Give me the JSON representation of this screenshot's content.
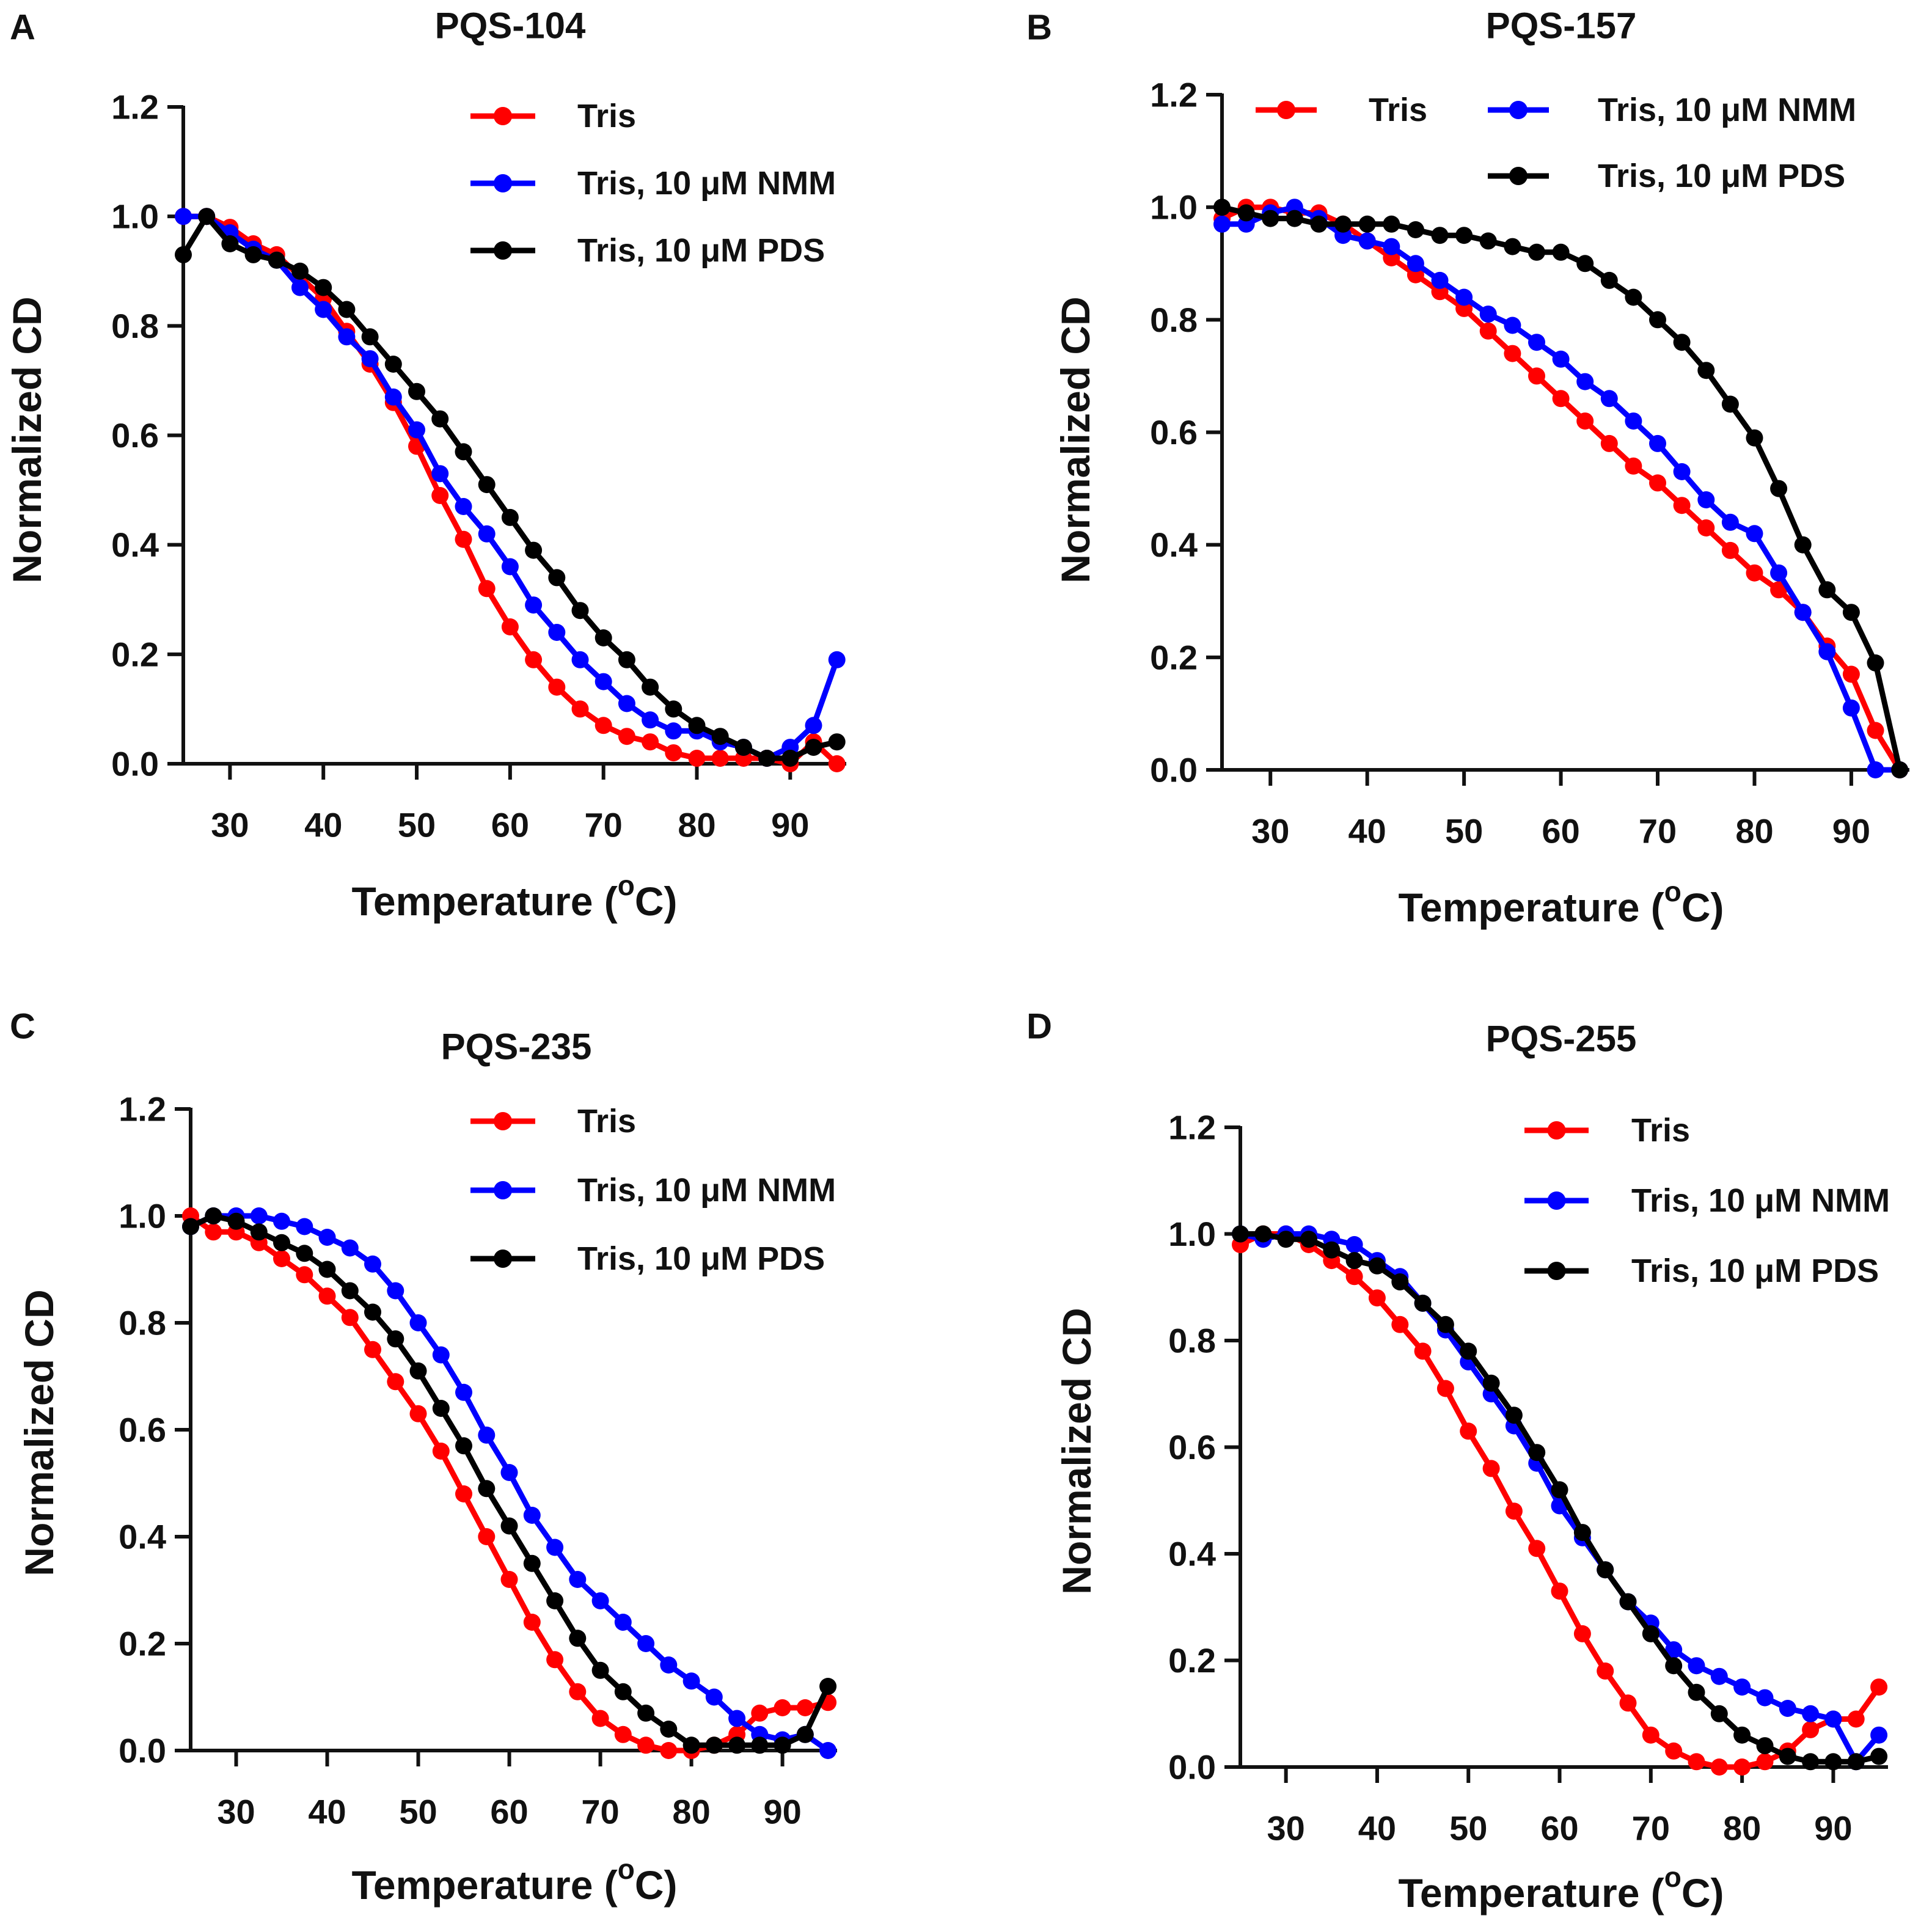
{
  "figure": {
    "colors": {
      "tris": "#ff0000",
      "nmm": "#0000ff",
      "pds": "#000000",
      "axis": "#111111"
    }
  },
  "chart_data": [
    {
      "panel_letter": "A",
      "type": "line",
      "title": "PQS-104",
      "xlabel_main": "Temperature (",
      "xlabel_sup": "o",
      "xlabel_end": "C)",
      "ylabel": "Normalized CD",
      "xlim": [
        25,
        96
      ],
      "ylim": [
        0,
        1.2
      ],
      "xticks": [
        30,
        40,
        50,
        60,
        70,
        80,
        90
      ],
      "yticks": [
        "0.0",
        "0.2",
        "0.4",
        "0.6",
        "0.8",
        "1.0",
        "1.2"
      ],
      "legend_layout": "stacked",
      "series": [
        {
          "name": "Tris",
          "color": "#ff0000",
          "x": [
            25,
            27.5,
            30,
            32.5,
            35,
            37.5,
            40,
            42.5,
            45,
            47.5,
            50,
            52.5,
            55,
            57.5,
            60,
            62.5,
            65,
            67.5,
            70,
            72.5,
            75,
            77.5,
            80,
            82.5,
            85,
            87.5,
            90,
            92.5,
            95
          ],
          "y": [
            1.0,
            1.0,
            0.98,
            0.95,
            0.93,
            0.89,
            0.85,
            0.79,
            0.73,
            0.66,
            0.58,
            0.49,
            0.41,
            0.32,
            0.25,
            0.19,
            0.14,
            0.1,
            0.07,
            0.05,
            0.04,
            0.02,
            0.01,
            0.01,
            0.01,
            0.01,
            0.0,
            0.04,
            0.0
          ]
        },
        {
          "name": "Tris, 10 μM NMM",
          "color": "#0000ff",
          "x": [
            25,
            27.5,
            30,
            32.5,
            35,
            37.5,
            40,
            42.5,
            45,
            47.5,
            50,
            52.5,
            55,
            57.5,
            60,
            62.5,
            65,
            67.5,
            70,
            72.5,
            75,
            77.5,
            80,
            82.5,
            85,
            87.5,
            90,
            92.5,
            95
          ],
          "y": [
            1.0,
            1.0,
            0.97,
            0.94,
            0.92,
            0.87,
            0.83,
            0.78,
            0.74,
            0.67,
            0.61,
            0.53,
            0.47,
            0.42,
            0.36,
            0.29,
            0.24,
            0.19,
            0.15,
            0.11,
            0.08,
            0.06,
            0.06,
            0.04,
            0.03,
            0.01,
            0.03,
            0.07,
            0.19
          ]
        },
        {
          "name": "Tris, 10 μM PDS",
          "color": "#000000",
          "x": [
            25,
            27.5,
            30,
            32.5,
            35,
            37.5,
            40,
            42.5,
            45,
            47.5,
            50,
            52.5,
            55,
            57.5,
            60,
            62.5,
            65,
            67.5,
            70,
            72.5,
            75,
            77.5,
            80,
            82.5,
            85,
            87.5,
            90,
            92.5,
            95
          ],
          "y": [
            0.93,
            1.0,
            0.95,
            0.93,
            0.92,
            0.9,
            0.87,
            0.83,
            0.78,
            0.73,
            0.68,
            0.63,
            0.57,
            0.51,
            0.45,
            0.39,
            0.34,
            0.28,
            0.23,
            0.19,
            0.14,
            0.1,
            0.07,
            0.05,
            0.03,
            0.01,
            0.01,
            0.03,
            0.04
          ]
        }
      ]
    },
    {
      "panel_letter": "B",
      "type": "line",
      "title": "PQS-157",
      "xlabel_main": "Temperature (",
      "xlabel_sup": "o",
      "xlabel_end": "C)",
      "ylabel": "Normalized CD",
      "xlim": [
        25,
        96
      ],
      "ylim": [
        0,
        1.2
      ],
      "xticks": [
        30,
        40,
        50,
        60,
        70,
        80,
        90
      ],
      "yticks": [
        "0.0",
        "0.2",
        "0.4",
        "0.6",
        "0.8",
        "1.0",
        "1.2"
      ],
      "legend_layout": "grid",
      "series": [
        {
          "name": "Tris",
          "color": "#ff0000",
          "x": [
            25,
            27.5,
            30,
            32.5,
            35,
            37.5,
            40,
            42.5,
            45,
            47.5,
            50,
            52.5,
            55,
            57.5,
            60,
            62.5,
            65,
            67.5,
            70,
            72.5,
            75,
            77.5,
            80,
            82.5,
            85,
            87.5,
            90,
            92.5,
            95
          ],
          "y": [
            0.98,
            1.0,
            1.0,
            0.99,
            0.99,
            0.97,
            0.94,
            0.91,
            0.88,
            0.85,
            0.82,
            0.78,
            0.74,
            0.7,
            0.66,
            0.62,
            0.58,
            0.54,
            0.51,
            0.47,
            0.43,
            0.39,
            0.35,
            0.32,
            0.28,
            0.22,
            0.17,
            0.07,
            0.0
          ]
        },
        {
          "name": "Tris, 10 μM NMM",
          "color": "#0000ff",
          "x": [
            25,
            27.5,
            30,
            32.5,
            35,
            37.5,
            40,
            42.5,
            45,
            47.5,
            50,
            52.5,
            55,
            57.5,
            60,
            62.5,
            65,
            67.5,
            70,
            72.5,
            75,
            77.5,
            80,
            82.5,
            85,
            87.5,
            90,
            92.5,
            95
          ],
          "y": [
            0.97,
            0.97,
            0.99,
            1.0,
            0.98,
            0.95,
            0.94,
            0.93,
            0.9,
            0.87,
            0.84,
            0.81,
            0.79,
            0.76,
            0.73,
            0.69,
            0.66,
            0.62,
            0.58,
            0.53,
            0.48,
            0.44,
            0.42,
            0.35,
            0.28,
            0.21,
            0.11,
            0.0,
            0.0
          ]
        },
        {
          "name": "Tris, 10 μM PDS",
          "color": "#000000",
          "x": [
            25,
            27.5,
            30,
            32.5,
            35,
            37.5,
            40,
            42.5,
            45,
            47.5,
            50,
            52.5,
            55,
            57.5,
            60,
            62.5,
            65,
            67.5,
            70,
            72.5,
            75,
            77.5,
            80,
            82.5,
            85,
            87.5,
            90,
            92.5,
            95
          ],
          "y": [
            1.0,
            0.99,
            0.98,
            0.98,
            0.97,
            0.97,
            0.97,
            0.97,
            0.96,
            0.95,
            0.95,
            0.94,
            0.93,
            0.92,
            0.92,
            0.9,
            0.87,
            0.84,
            0.8,
            0.76,
            0.71,
            0.65,
            0.59,
            0.5,
            0.4,
            0.32,
            0.28,
            0.19,
            0.0
          ]
        }
      ]
    },
    {
      "panel_letter": "C",
      "type": "line",
      "title": "PQS-235",
      "xlabel_main": "Temperature (",
      "xlabel_sup": "o",
      "xlabel_end": "C)",
      "ylabel": "Normalized CD",
      "xlim": [
        25,
        96
      ],
      "ylim": [
        0,
        1.2
      ],
      "xticks": [
        30,
        40,
        50,
        60,
        70,
        80,
        90
      ],
      "yticks": [
        "0.0",
        "0.2",
        "0.4",
        "0.6",
        "0.8",
        "1.0",
        "1.2"
      ],
      "legend_layout": "stacked",
      "series": [
        {
          "name": "Tris",
          "color": "#ff0000",
          "x": [
            25,
            27.5,
            30,
            32.5,
            35,
            37.5,
            40,
            42.5,
            45,
            47.5,
            50,
            52.5,
            55,
            57.5,
            60,
            62.5,
            65,
            67.5,
            70,
            72.5,
            75,
            77.5,
            80,
            82.5,
            85,
            87.5,
            90,
            92.5,
            95
          ],
          "y": [
            1.0,
            0.97,
            0.97,
            0.95,
            0.92,
            0.89,
            0.85,
            0.81,
            0.75,
            0.69,
            0.63,
            0.56,
            0.48,
            0.4,
            0.32,
            0.24,
            0.17,
            0.11,
            0.06,
            0.03,
            0.01,
            0.0,
            0.0,
            0.01,
            0.03,
            0.07,
            0.08,
            0.08,
            0.09
          ]
        },
        {
          "name": "Tris, 10 μM NMM",
          "color": "#0000ff",
          "x": [
            25,
            27.5,
            30,
            32.5,
            35,
            37.5,
            40,
            42.5,
            45,
            47.5,
            50,
            52.5,
            55,
            57.5,
            60,
            62.5,
            65,
            67.5,
            70,
            72.5,
            75,
            77.5,
            80,
            82.5,
            85,
            87.5,
            90,
            92.5,
            95
          ],
          "y": [
            0.98,
            1.0,
            1.0,
            1.0,
            0.99,
            0.98,
            0.96,
            0.94,
            0.91,
            0.86,
            0.8,
            0.74,
            0.67,
            0.59,
            0.52,
            0.44,
            0.38,
            0.32,
            0.28,
            0.24,
            0.2,
            0.16,
            0.13,
            0.1,
            0.06,
            0.03,
            0.02,
            0.03,
            0.0
          ]
        },
        {
          "name": "Tris, 10 μM PDS",
          "color": "#000000",
          "x": [
            25,
            27.5,
            30,
            32.5,
            35,
            37.5,
            40,
            42.5,
            45,
            47.5,
            50,
            52.5,
            55,
            57.5,
            60,
            62.5,
            65,
            67.5,
            70,
            72.5,
            75,
            77.5,
            80,
            82.5,
            85,
            87.5,
            90,
            92.5,
            95
          ],
          "y": [
            0.98,
            1.0,
            0.99,
            0.97,
            0.95,
            0.93,
            0.9,
            0.86,
            0.82,
            0.77,
            0.71,
            0.64,
            0.57,
            0.49,
            0.42,
            0.35,
            0.28,
            0.21,
            0.15,
            0.11,
            0.07,
            0.04,
            0.01,
            0.01,
            0.01,
            0.01,
            0.01,
            0.03,
            0.12
          ]
        }
      ]
    },
    {
      "panel_letter": "D",
      "type": "line",
      "title": "PQS-255",
      "xlabel_main": "Temperature (",
      "xlabel_sup": "o",
      "xlabel_end": "C)",
      "ylabel": "Normalized CD",
      "xlim": [
        25,
        96
      ],
      "ylim": [
        0,
        1.2
      ],
      "xticks": [
        30,
        40,
        50,
        60,
        70,
        80,
        90
      ],
      "yticks": [
        "0.0",
        "0.2",
        "0.4",
        "0.6",
        "0.8",
        "1.0",
        "1.2"
      ],
      "legend_layout": "stacked",
      "series": [
        {
          "name": "Tris",
          "color": "#ff0000",
          "x": [
            25,
            27.5,
            30,
            32.5,
            35,
            37.5,
            40,
            42.5,
            45,
            47.5,
            50,
            52.5,
            55,
            57.5,
            60,
            62.5,
            65,
            67.5,
            70,
            72.5,
            75,
            77.5,
            80,
            82.5,
            85,
            87.5,
            90,
            92.5,
            95
          ],
          "y": [
            0.98,
            1.0,
            1.0,
            0.98,
            0.95,
            0.92,
            0.88,
            0.83,
            0.78,
            0.71,
            0.63,
            0.56,
            0.48,
            0.41,
            0.33,
            0.25,
            0.18,
            0.12,
            0.06,
            0.03,
            0.01,
            0.0,
            0.0,
            0.01,
            0.03,
            0.07,
            0.09,
            0.09,
            0.15
          ]
        },
        {
          "name": "Tris, 10 μM NMM",
          "color": "#0000ff",
          "x": [
            25,
            27.5,
            30,
            32.5,
            35,
            37.5,
            40,
            42.5,
            45,
            47.5,
            50,
            52.5,
            55,
            57.5,
            60,
            62.5,
            65,
            67.5,
            70,
            72.5,
            75,
            77.5,
            80,
            82.5,
            85,
            87.5,
            90,
            92.5,
            95
          ],
          "y": [
            1.0,
            0.99,
            1.0,
            1.0,
            0.99,
            0.98,
            0.95,
            0.92,
            0.87,
            0.82,
            0.76,
            0.7,
            0.64,
            0.57,
            0.49,
            0.43,
            0.37,
            0.31,
            0.27,
            0.22,
            0.19,
            0.17,
            0.15,
            0.13,
            0.11,
            0.1,
            0.09,
            0.01,
            0.06
          ]
        },
        {
          "name": "Tris, 10 μM PDS",
          "color": "#000000",
          "x": [
            25,
            27.5,
            30,
            32.5,
            35,
            37.5,
            40,
            42.5,
            45,
            47.5,
            50,
            52.5,
            55,
            57.5,
            60,
            62.5,
            65,
            67.5,
            70,
            72.5,
            75,
            77.5,
            80,
            82.5,
            85,
            87.5,
            90,
            92.5,
            95
          ],
          "y": [
            1.0,
            1.0,
            0.99,
            0.99,
            0.97,
            0.95,
            0.94,
            0.91,
            0.87,
            0.83,
            0.78,
            0.72,
            0.66,
            0.59,
            0.52,
            0.44,
            0.37,
            0.31,
            0.25,
            0.19,
            0.14,
            0.1,
            0.06,
            0.04,
            0.02,
            0.01,
            0.01,
            0.01,
            0.02
          ]
        }
      ]
    }
  ]
}
